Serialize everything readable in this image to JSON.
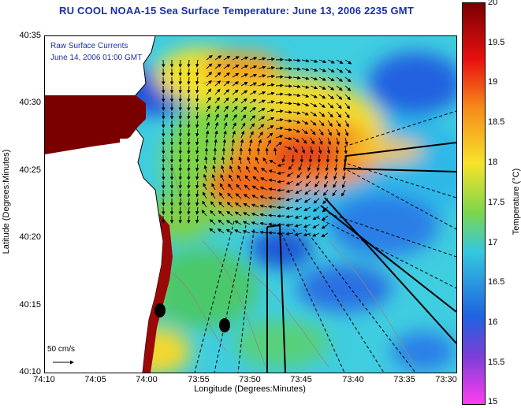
{
  "title": "RU COOL  NOAA-15  Sea Surface Temperature:  June 13, 2006 2235 GMT",
  "inset": {
    "line1": "Raw Surface Currents",
    "line2": "June 14, 2006 01:00 GMT"
  },
  "scale": {
    "label": "50 cm/s"
  },
  "axes": {
    "xlabel": "Longitude (Degrees:Minutes)",
    "ylabel": "Latitude (Degrees:Minutes)",
    "xticks": [
      "74:10",
      "74:05",
      "74:00",
      "73:55",
      "73:50",
      "73:45",
      "73:40",
      "73:35",
      "73:30"
    ],
    "yticks": [
      "40:35",
      "40:30",
      "40:25",
      "40:20",
      "40:15",
      "40:10"
    ]
  },
  "colorbar": {
    "title": "Temperature (°C)",
    "ticks": [
      "20",
      "19.5",
      "19",
      "18.5",
      "18",
      "17.5",
      "17",
      "16.5",
      "16",
      "15.5",
      "15"
    ],
    "range": [
      15,
      20
    ],
    "colors": {
      "high": "#7a0000",
      "red": "#e81010",
      "orange": "#f58a1a",
      "yellow": "#f7e32a",
      "green": "#7fd64b",
      "cyan": "#34c8df",
      "blue": "#1f63e0",
      "purple": "#7a3fd6",
      "low": "#ff3ef2"
    }
  },
  "chart_data": {
    "type": "heatmap",
    "title": "RU COOL  NOAA-15  Sea Surface Temperature:  June 13, 2006 2235 GMT",
    "xlabel": "Longitude (Degrees:Minutes)",
    "ylabel": "Latitude (Degrees:Minutes)",
    "xlim": [
      "74:10",
      "73:30"
    ],
    "ylim": [
      "40:10",
      "40:35"
    ],
    "zlabel": "Temperature (°C)",
    "zlim": [
      15,
      20
    ]
  }
}
